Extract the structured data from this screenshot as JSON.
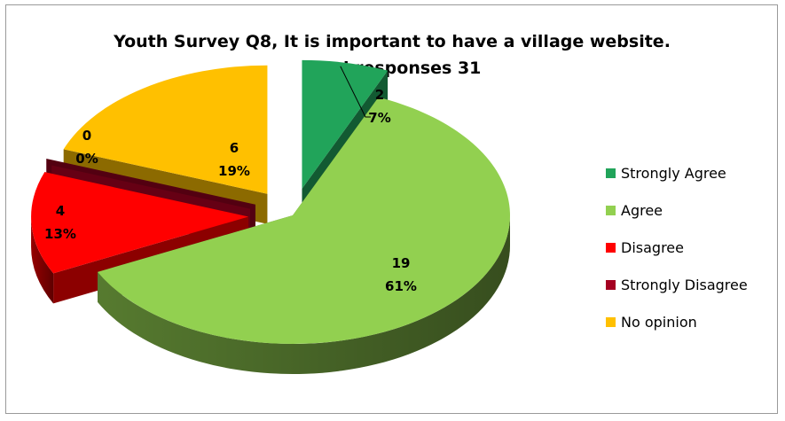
{
  "chart_data": {
    "type": "pie",
    "title": "Youth Survey Q8, It is important to have a village website.",
    "subtitle": "Total responses 31",
    "categories": [
      "Strongly Agree",
      "Agree",
      "Disagree",
      "Strongly Disagree",
      "No opinion"
    ],
    "values": [
      2,
      19,
      4,
      0,
      6
    ],
    "percent_labels": [
      "7%",
      "61%",
      "13%",
      "0%",
      "19%"
    ],
    "colors": [
      "#21a45a",
      "#92d050",
      "#ff0000",
      "#a50021",
      "#ffc000"
    ],
    "style": "3d-exploded",
    "legend_position": "right"
  }
}
